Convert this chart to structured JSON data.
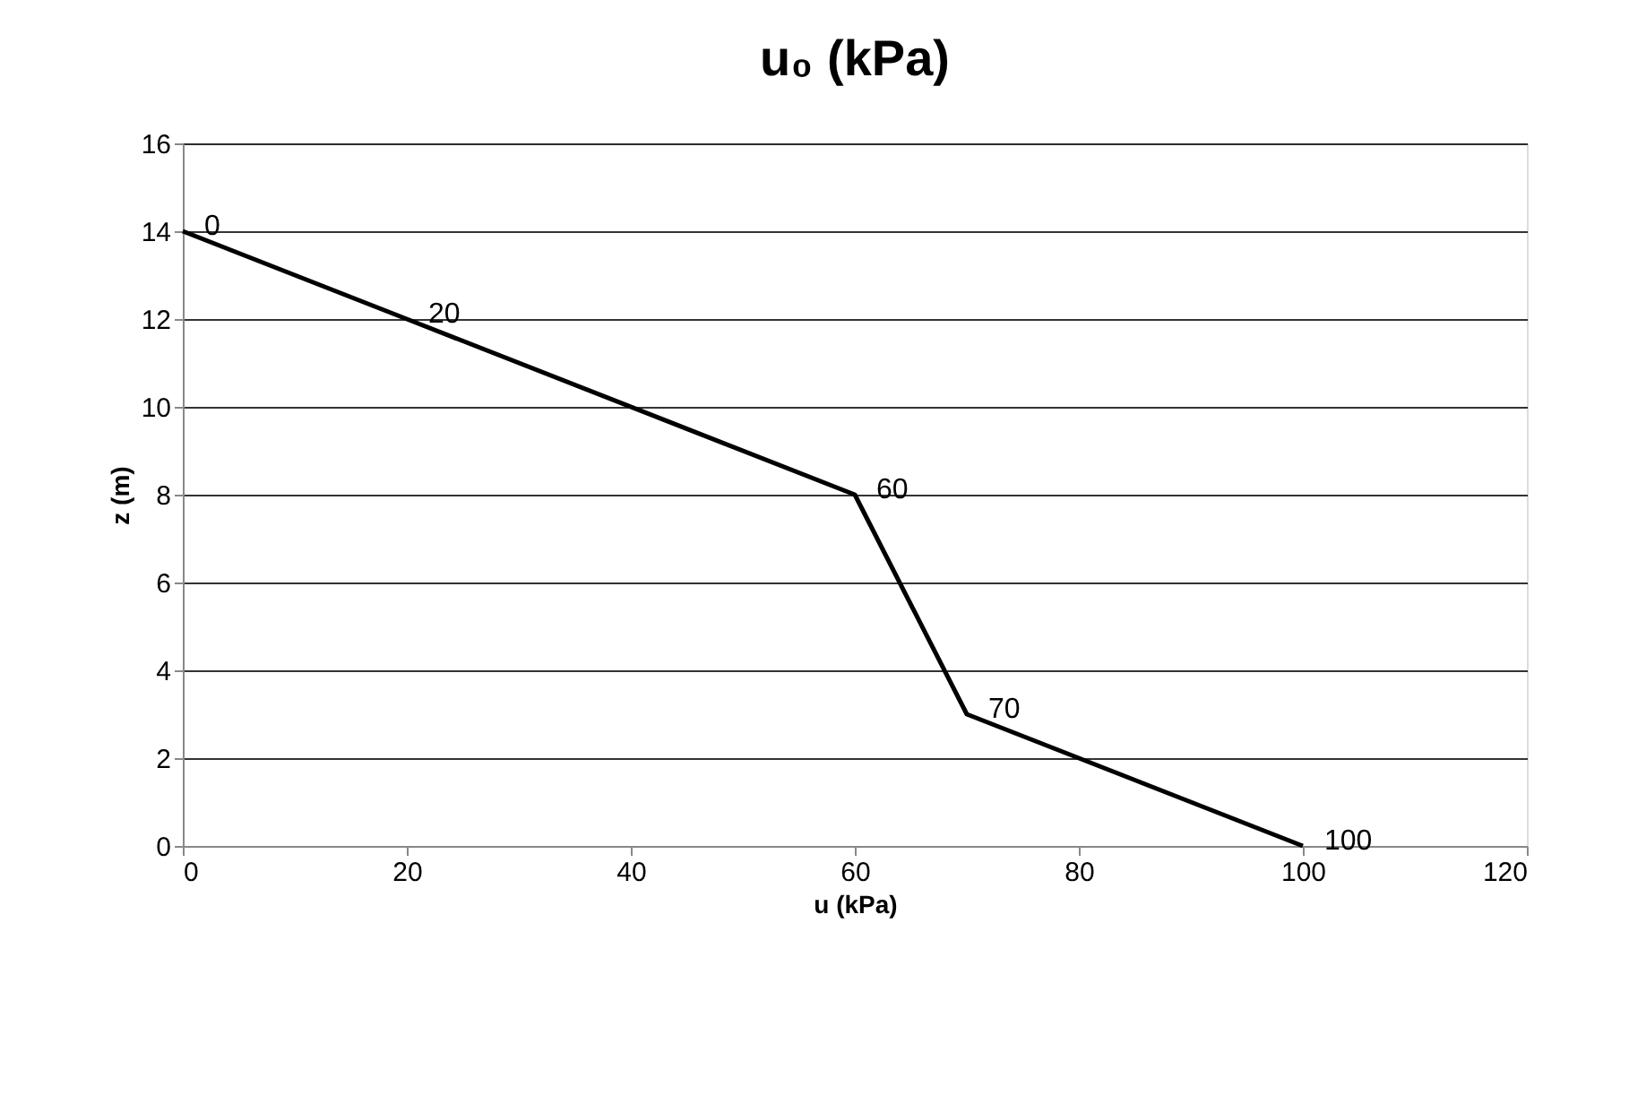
{
  "chart_data": {
    "type": "line",
    "title": "u₀ (kPa)",
    "xlabel": "u (kPa)",
    "ylabel": "z (m)",
    "x": [
      0,
      20,
      60,
      70,
      100
    ],
    "series": [
      {
        "color": "#000000",
        "values": [
          14,
          12,
          8,
          3,
          0
        ]
      }
    ],
    "annotations": [
      {
        "text": "0",
        "x": 0,
        "y": 14
      },
      {
        "text": "20",
        "x": 20,
        "y": 12
      },
      {
        "text": "60",
        "x": 60,
        "y": 8
      },
      {
        "text": "70",
        "x": 70,
        "y": 3
      },
      {
        "text": "100",
        "x": 100,
        "y": 0
      }
    ],
    "xlim": [
      0,
      120
    ],
    "xticks": [
      0,
      20,
      40,
      60,
      80,
      100,
      120
    ],
    "ylim": [
      0,
      16
    ],
    "yticks": [
      0,
      2,
      4,
      6,
      8,
      10,
      12,
      14,
      16
    ],
    "grid": "y",
    "marker": "none",
    "line_style": "solid"
  }
}
